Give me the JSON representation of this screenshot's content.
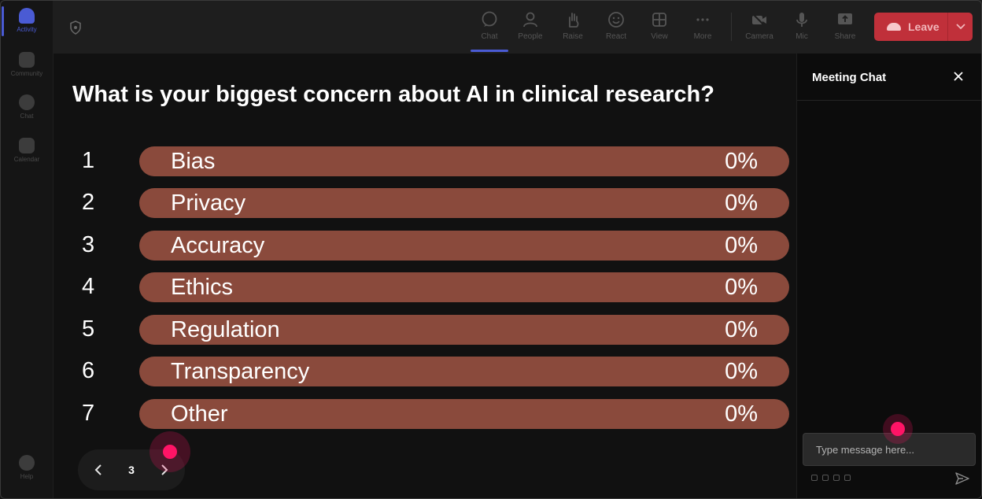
{
  "rail": {
    "items": [
      {
        "label": "Activity",
        "active": true
      },
      {
        "label": "Community",
        "active": false
      },
      {
        "label": "Chat",
        "active": false
      },
      {
        "label": "Calendar",
        "active": false
      }
    ],
    "help_label": "Help"
  },
  "toolbar": {
    "buttons": [
      {
        "label": "Chat",
        "icon": "chat-icon",
        "active": true
      },
      {
        "label": "People",
        "icon": "people-icon",
        "active": false
      },
      {
        "label": "Raise",
        "icon": "raise-hand-icon",
        "active": false
      },
      {
        "label": "React",
        "icon": "react-icon",
        "active": false
      },
      {
        "label": "View",
        "icon": "view-grid-icon",
        "active": false
      },
      {
        "label": "More",
        "icon": "more-icon",
        "active": false
      },
      {
        "label": "Camera",
        "icon": "camera-off-icon",
        "active": false
      },
      {
        "label": "Mic",
        "icon": "mic-icon",
        "active": false
      },
      {
        "label": "Share",
        "icon": "share-icon",
        "active": false
      }
    ],
    "leave_label": "Leave"
  },
  "poll": {
    "question": "What is your biggest concern about AI in clinical research?",
    "options": [
      {
        "number": "1",
        "label": "Bias",
        "percent": "0%"
      },
      {
        "number": "2",
        "label": "Privacy",
        "percent": "0%"
      },
      {
        "number": "3",
        "label": "Accuracy",
        "percent": "0%"
      },
      {
        "number": "4",
        "label": "Ethics",
        "percent": "0%"
      },
      {
        "number": "5",
        "label": "Regulation",
        "percent": "0%"
      },
      {
        "number": "6",
        "label": "Transparency",
        "percent": "0%"
      },
      {
        "number": "7",
        "label": "Other",
        "percent": "0%"
      }
    ],
    "page": "3"
  },
  "chat": {
    "title": "Meeting Chat",
    "input_placeholder": "Type message here..."
  },
  "colors": {
    "bar": "#8a4a3c",
    "leave": "#c0303a",
    "accent": "#4a5bd4",
    "cursor": "#ff1466"
  }
}
